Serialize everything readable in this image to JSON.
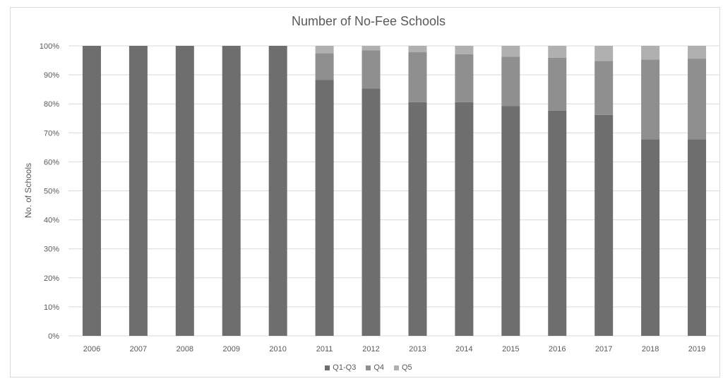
{
  "chart_data": {
    "type": "bar",
    "stacked": true,
    "title": "Number of No-Fee Schools",
    "xlabel": "",
    "ylabel": "No. of Schools",
    "ylim": [
      0,
      100
    ],
    "y_tick_labels": [
      "0%",
      "10%",
      "20%",
      "30%",
      "40%",
      "50%",
      "60%",
      "70%",
      "80%",
      "90%",
      "100%"
    ],
    "grid": true,
    "legend_position": "bottom",
    "categories": [
      "2006",
      "2007",
      "2008",
      "2009",
      "2010",
      "2011",
      "2012",
      "2013",
      "2014",
      "2015",
      "2016",
      "2017",
      "2018",
      "2019"
    ],
    "series": [
      {
        "name": "Q1-Q3",
        "color": "#6e6e6e",
        "values": [
          100,
          100,
          100,
          100,
          100,
          88.2,
          85.3,
          80.6,
          80.6,
          79.2,
          77.7,
          76.2,
          67.8,
          67.8
        ]
      },
      {
        "name": "Q4",
        "color": "#8f8f8f",
        "values": [
          0,
          0,
          0,
          0,
          0,
          9.3,
          13.2,
          17.2,
          16.5,
          17.1,
          18.2,
          18.6,
          27.5,
          27.8
        ]
      },
      {
        "name": "Q5",
        "color": "#b0b0b0",
        "values": [
          0,
          0,
          0,
          0,
          0,
          2.5,
          1.5,
          2.2,
          2.9,
          3.7,
          4.1,
          5.2,
          4.7,
          4.4
        ]
      }
    ]
  }
}
